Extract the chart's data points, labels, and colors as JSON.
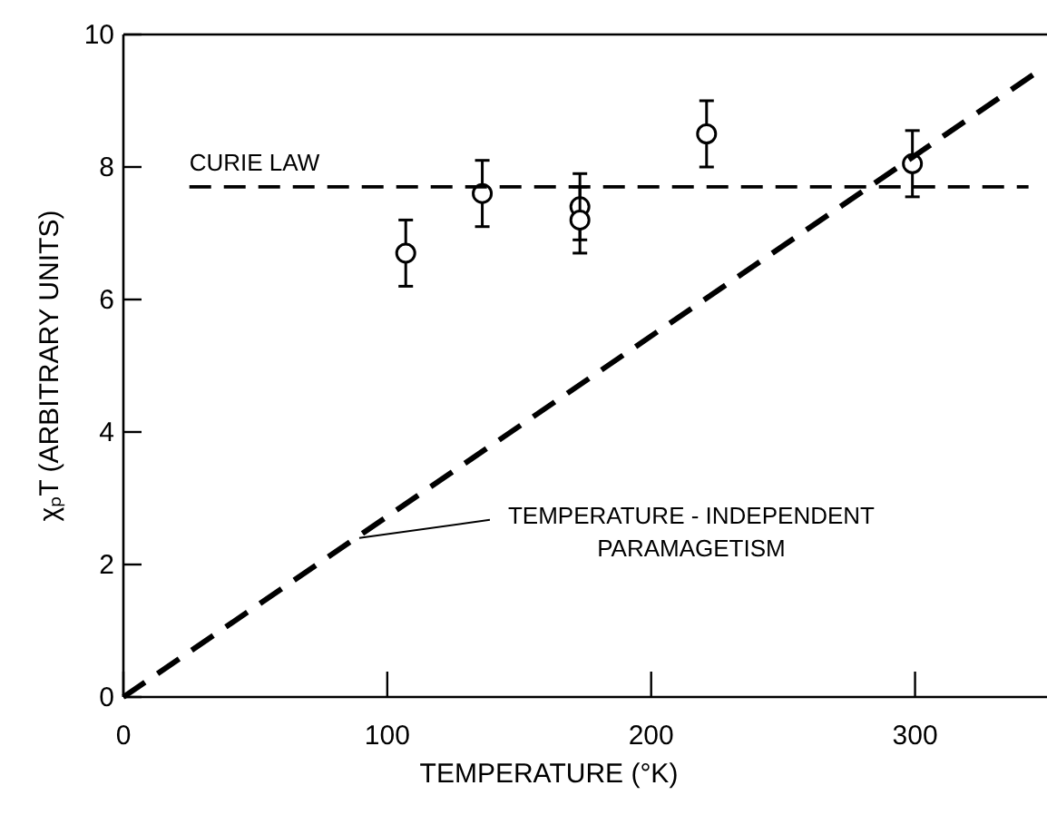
{
  "chart_data": {
    "type": "scatter",
    "xlabel": "TEMPERATURE (°K)",
    "ylabel": "χₚT (ARBITRARY UNITS)",
    "xlim": [
      0,
      350
    ],
    "xticks": [
      0,
      100,
      200,
      300
    ],
    "ylim": [
      0,
      10
    ],
    "yticks": [
      0,
      2,
      4,
      6,
      8,
      10
    ],
    "grid": false,
    "series": [
      {
        "color": "#000000",
        "marker": "circle",
        "x": [
          107,
          136,
          173,
          173,
          221,
          299
        ],
        "values": [
          6.7,
          7.6,
          7.4,
          7.2,
          8.5,
          8.05
        ],
        "errors": [
          0.5,
          0.5,
          0.5,
          0.5,
          0.5,
          0.5
        ]
      },
      {
        "type": "line",
        "color": "#000000",
        "marker": "none",
        "line_style": "dashed",
        "x": [
          25,
          343
        ],
        "values": [
          7.7,
          7.7
        ]
      },
      {
        "type": "line",
        "color": "#000000",
        "marker": "none",
        "line_style": "dashed",
        "x": [
          0,
          345
        ],
        "values": [
          0,
          9.4
        ]
      }
    ],
    "annotations": [
      {
        "text": "CURIE LAW",
        "x": 25,
        "y": 7.7
      },
      {
        "text": "TEMPERATURE - INDEPENDENT\nPARAMAGETISM",
        "x": 88,
        "y": 2.4
      }
    ]
  }
}
